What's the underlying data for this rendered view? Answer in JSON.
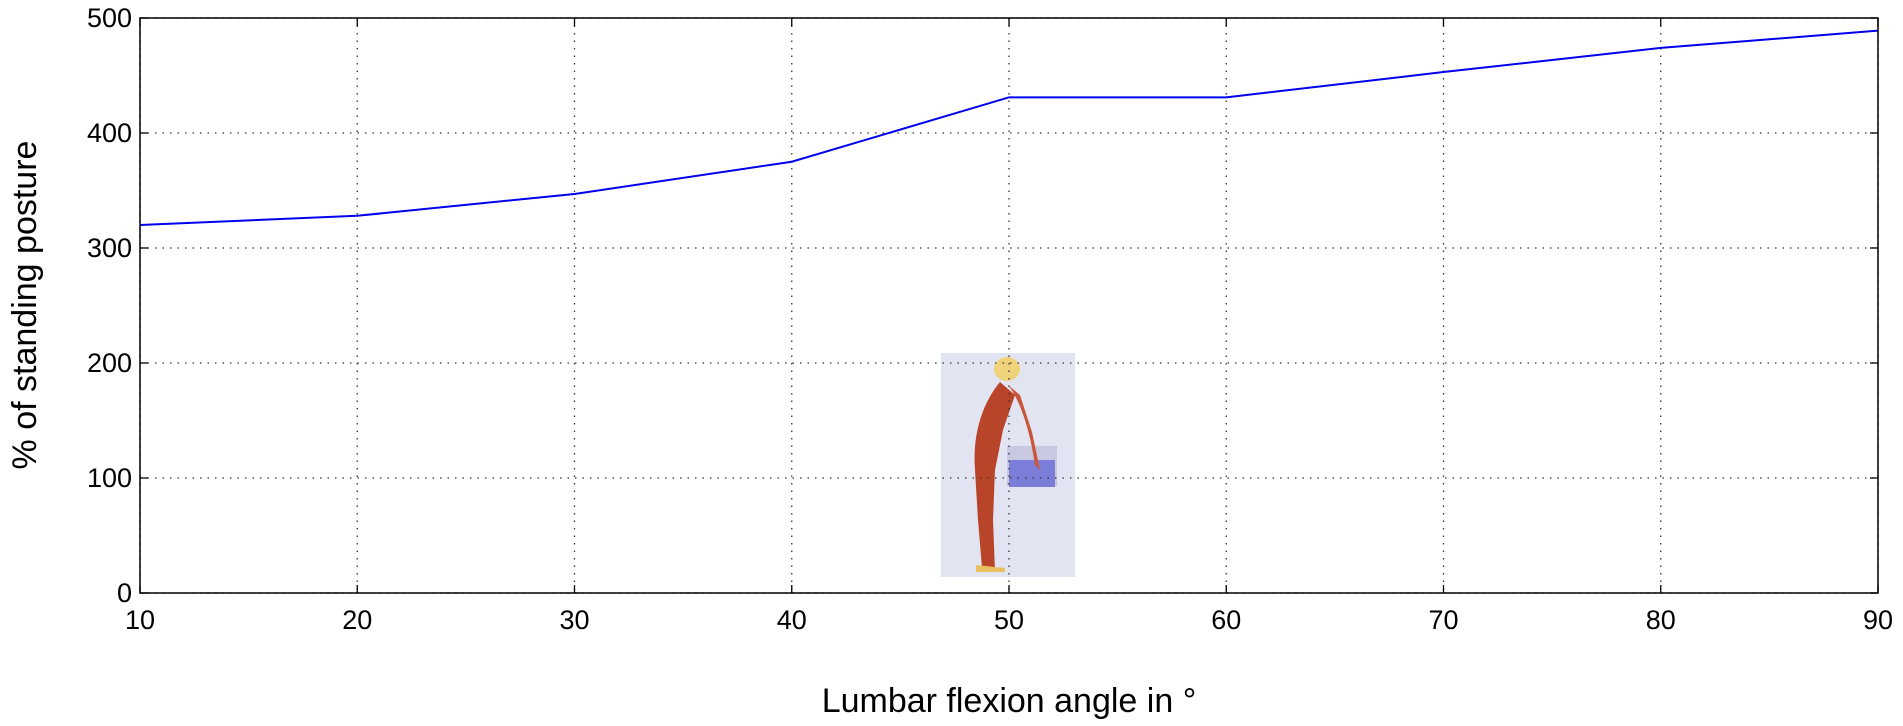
{
  "chart_data": {
    "type": "line",
    "x_label": "Lumbar flexion angle in °",
    "y_label": "% of standing posture",
    "x": [
      10,
      20,
      30,
      40,
      50,
      60,
      70,
      80,
      90
    ],
    "series": [
      {
        "color": "#0000ee",
        "values": [
          320,
          328,
          347,
          375,
          431,
          431,
          453,
          474,
          489
        ]
      }
    ],
    "xlim": [
      10,
      90
    ],
    "xticks": [
      10,
      20,
      30,
      40,
      50,
      60,
      70,
      80,
      90
    ],
    "ylim": [
      0,
      500
    ],
    "yticks": [
      0,
      100,
      200,
      300,
      400,
      500
    ],
    "grid": true
  }
}
